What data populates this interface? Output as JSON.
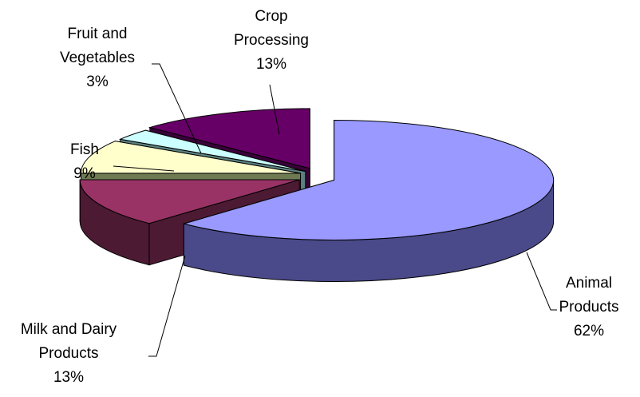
{
  "chart_data": {
    "type": "pie",
    "style": "3d-exploded",
    "title": "",
    "legend": "none",
    "slices": [
      {
        "label_lines": [
          "Animal",
          "Products"
        ],
        "value": 62,
        "percent_label": "62%",
        "color": "#9999ff",
        "side_color": "#4a4a8a"
      },
      {
        "label_lines": [
          "Milk and Dairy",
          "Products"
        ],
        "value": 13,
        "percent_label": "13%",
        "color": "#993366",
        "side_color": "#4d1a33"
      },
      {
        "label_lines": [
          "Fish"
        ],
        "value": 9,
        "percent_label": "9%",
        "color": "#ffffcc",
        "side_color": "#6e7a52"
      },
      {
        "label_lines": [
          "Fruit and",
          "Vegetables"
        ],
        "value": 3,
        "percent_label": "3%",
        "color": "#ccffff",
        "side_color": "#5c8080"
      },
      {
        "label_lines": [
          "Crop",
          "Processing"
        ],
        "value": 13,
        "percent_label": "13%",
        "color": "#660066",
        "side_color": "#3a003a"
      }
    ]
  }
}
